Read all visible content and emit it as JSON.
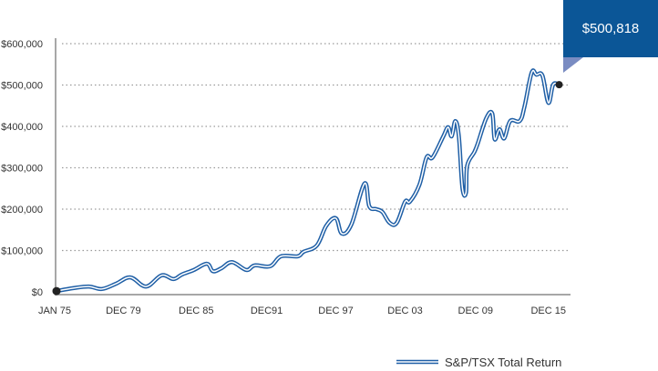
{
  "chart_data": {
    "type": "line",
    "title": "",
    "xlabel": "",
    "ylabel": "",
    "ylim": [
      0,
      600000
    ],
    "xlim": [
      1975,
      2017.1
    ],
    "grid": true,
    "legend_position": "bottom-right",
    "y_ticks": [
      {
        "value": 0,
        "label": "$0"
      },
      {
        "value": 100000,
        "label": "$100,000"
      },
      {
        "value": 200000,
        "label": "$200,000"
      },
      {
        "value": 300000,
        "label": "$300,000"
      },
      {
        "value": 400000,
        "label": "$400,000"
      },
      {
        "value": 500000,
        "label": "$500,000"
      },
      {
        "value": 600000,
        "label": "$600,000"
      }
    ],
    "x_ticks": [
      {
        "value": 1975,
        "label": "JAN 75"
      },
      {
        "value": 1980.6,
        "label": "DEC 79"
      },
      {
        "value": 1986.7,
        "label": "DEC 85"
      },
      {
        "value": 1992.6,
        "label": "DEC91"
      },
      {
        "value": 1998.4,
        "label": "DEC 97"
      },
      {
        "value": 2004.2,
        "label": "DEC 03"
      },
      {
        "value": 2010.1,
        "label": "DEC 09"
      },
      {
        "value": 2016.2,
        "label": "DEC 15"
      }
    ],
    "series": [
      {
        "name": "S&P/TSX Total Return",
        "color": "#1f5fa6",
        "x": [
          1975.0,
          1976.4,
          1977.7,
          1978.8,
          1980.0,
          1981.2,
          1982.5,
          1983.8,
          1984.8,
          1985.5,
          1986.5,
          1987.6,
          1988.1,
          1988.8,
          1989.7,
          1990.9,
          1991.6,
          1992.9,
          1993.8,
          1995.2,
          1995.7,
          1996.8,
          1997.6,
          1998.4,
          1998.9,
          1999.7,
          2000.8,
          2001.2,
          2001.8,
          2002.3,
          2002.9,
          2003.5,
          2004.2,
          2004.6,
          2005.4,
          2006.0,
          2006.5,
          2007.4,
          2007.8,
          2008.1,
          2008.4,
          2008.7,
          2009.0,
          2009.3,
          2009.4,
          2010.0,
          2010.3,
          2011.0,
          2011.5,
          2011.7,
          2012.1,
          2012.5,
          2013.0,
          2013.8,
          2014.2,
          2014.8,
          2015.2,
          2015.7,
          2016.2,
          2016.6,
          2017.1
        ],
        "y": [
          2000,
          9000,
          13000,
          7000,
          20000,
          35000,
          13000,
          40000,
          31000,
          42000,
          53000,
          68000,
          50000,
          57000,
          72000,
          53000,
          64000,
          62000,
          86000,
          86000,
          97000,
          112000,
          160000,
          178000,
          141000,
          163000,
          262000,
          207000,
          200000,
          193000,
          167000,
          167000,
          218000,
          218000,
          259000,
          325000,
          325000,
          376000,
          398000,
          376000,
          413000,
          376000,
          251000,
          240000,
          305000,
          338000,
          360000,
          420000,
          431000,
          369000,
          393000,
          371000,
          413000,
          413000,
          448000,
          530000,
          525000,
          523000,
          457000,
          501000,
          500818
        ]
      }
    ],
    "callout": {
      "label": "$500,818",
      "color": "#0b5697",
      "tail_color": "#7a8cc2"
    },
    "legend": [
      {
        "label": "S&P/TSX Total Return"
      }
    ],
    "markers": {
      "color": "#222222"
    }
  }
}
